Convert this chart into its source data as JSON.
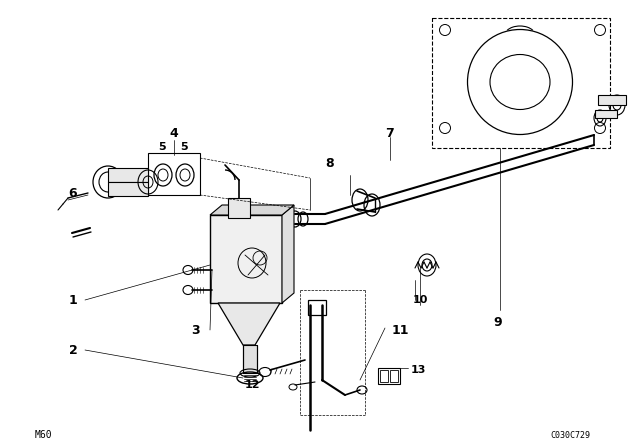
{
  "bg_color": "#ffffff",
  "line_color": "#000000",
  "fig_width": 6.4,
  "fig_height": 4.48,
  "dpi": 100,
  "bottom_left_label": "M60",
  "bottom_right_label": "C030C729"
}
